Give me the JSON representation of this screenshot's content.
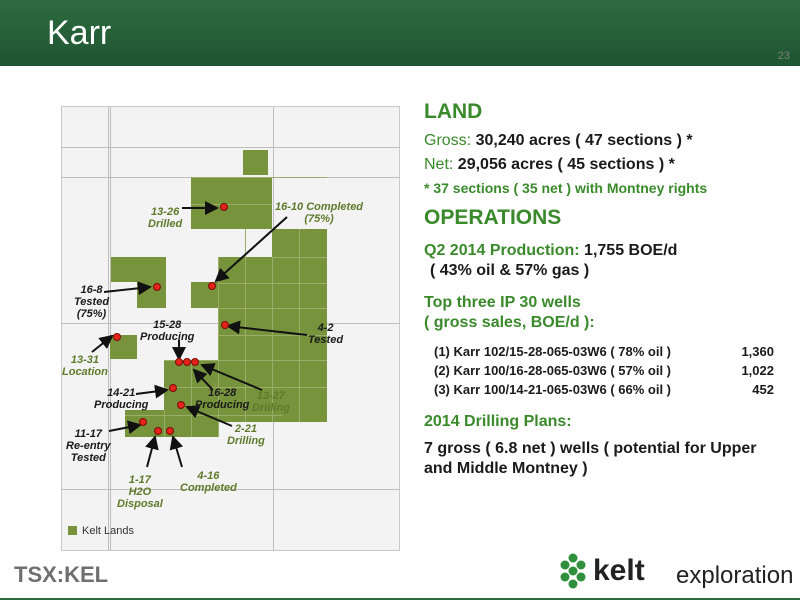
{
  "header": {
    "title": "Karr"
  },
  "page_number": "23",
  "map": {
    "labels": {
      "l_1326": "13-26\nDrilled",
      "l_1610": "16-10 Completed\n(75%)",
      "l_168": "16-8\nTested\n(75%)",
      "l_1528": "15-28\nProducing",
      "l_42": "4-2\nTested",
      "l_1331": "13-31\nLocation",
      "l_1421": "14-21\nProducing",
      "l_1628": "16-28\nProducing",
      "l_1327": "13-27\nDrilling",
      "l_1117": "11-17\nRe-entry\nTested",
      "l_221": "2-21\nDrilling",
      "l_117": "1-17\nH2O\nDisposal",
      "l_416": "4-16\nCompleted"
    },
    "legend": "Kelt Lands",
    "colors": {
      "land": "#77933c",
      "well": "#e5231a"
    }
  },
  "content": {
    "land_heading": "LAND",
    "gross_label": "Gross:",
    "gross_value": "30,240 acres ( 47 sections ) *",
    "net_label": "Net:",
    "net_value": "29,056 acres ( 45 sections ) *",
    "footnote": "* 37 sections ( 35 net ) with Montney rights",
    "ops_heading": "OPERATIONS",
    "prod_label": "Q2 2014 Production:",
    "prod_value": "1,755 BOE/d",
    "prod_split": "( 43% oil & 57% gas )",
    "top_wells_title": "Top three IP 30 wells",
    "top_wells_sub": "( gross sales, BOE/d ):",
    "wells": [
      {
        "name": "(1) Karr 102/15-28-065-03W6 ( 78% oil )",
        "value": "1,360"
      },
      {
        "name": "(2) Karr 100/16-28-065-03W6 ( 57% oil )",
        "value": "1,022"
      },
      {
        "name": "(3) Karr 100/14-21-065-03W6 ( 66% oil )",
        "value": "452"
      }
    ],
    "drilling_title": "2014 Drilling Plans:",
    "drilling_body": "7 gross ( 6.8 net ) wells ( potential for Upper and Middle Montney )"
  },
  "footer": {
    "tsx": "TSX:KEL",
    "brand_kelt": "kelt",
    "brand_exploration": "exploration"
  }
}
